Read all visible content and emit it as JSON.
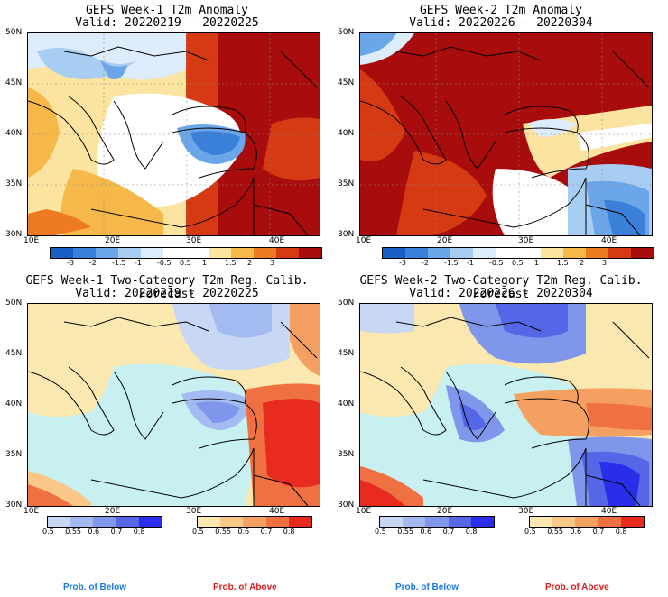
{
  "panels": [
    {
      "title": "GEFS Week-1 T2m Anomaly",
      "valid": "Valid: 20220219 - 20220225"
    },
    {
      "title": "GEFS Week-2 T2m Anomaly",
      "valid": "Valid: 20220226 - 20220304"
    },
    {
      "title": "GEFS Week-1 Two-Category T2m Reg. Calib. Forecast",
      "valid": "Valid: 20220219 - 20220225"
    },
    {
      "title": "GEFS Week-2 Two-Category T2m Reg. Calib. Forecast",
      "valid": "Valid: 20220226 - 20220304"
    }
  ],
  "lat_ticks": [
    "50N",
    "45N",
    "40N",
    "35N",
    "30N"
  ],
  "lon_ticks": [
    "10E",
    "20E",
    "30E",
    "40E"
  ],
  "anomaly_colorbar": {
    "labels": [
      "-3",
      "-2",
      "-1.5",
      "-1",
      "-0.5",
      "0.5",
      "1",
      "1.5",
      "2",
      "3"
    ],
    "colors": [
      "#1a5fc8",
      "#3a7fd8",
      "#6aa6e8",
      "#a8cdf2",
      "#dcecfa",
      "#ffffff",
      "#ffffff",
      "#fbe3a0",
      "#f7b84a",
      "#ee7a22",
      "#d63a12",
      "#a80c0c"
    ]
  },
  "prob_colorbar": {
    "below_labels": [
      "0.5",
      "0.55",
      "0.6",
      "0.7",
      "0.8"
    ],
    "above_labels": [
      "0.5",
      "0.55",
      "0.6",
      "0.7",
      "0.8"
    ],
    "below_colors": [
      "#c8d8f4",
      "#a3bbf0",
      "#7f96ea",
      "#5566e6",
      "#2a2ee8"
    ],
    "above_colors": [
      "#fbe8b0",
      "#f9c888",
      "#f4a060",
      "#ef7040",
      "#e82a20"
    ],
    "below_label": "Prob. of Below",
    "above_label": "Prob. of Above",
    "below_label_color": "#1e78dc",
    "above_label_color": "#dc1e1e"
  },
  "sea_color": "#c8f0f0"
}
